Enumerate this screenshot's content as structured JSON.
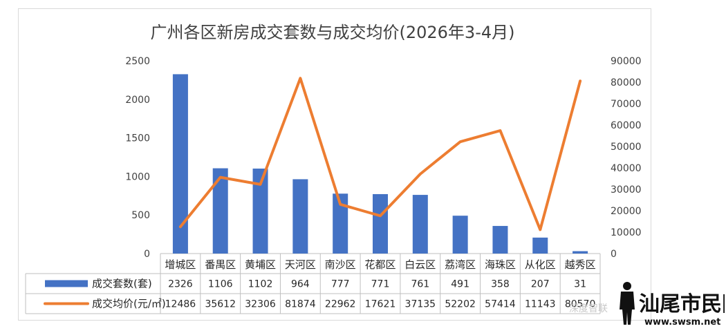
{
  "chart_data": {
    "type": "bar",
    "title": "广州各区新房成交套数与成交均价(2026年3-4月)",
    "categories": [
      "增城区",
      "番禺区",
      "黄埔区",
      "天河区",
      "南沙区",
      "花都区",
      "白云区",
      "荔湾区",
      "海珠区",
      "从化区",
      "越秀区"
    ],
    "series": [
      {
        "name": "成交套数(套)",
        "type": "bar",
        "axis": "left",
        "color": "#4472c4",
        "values": [
          2326,
          1106,
          1102,
          964,
          777,
          771,
          761,
          491,
          358,
          207,
          31
        ]
      },
      {
        "name": "成交均价(元/㎡)",
        "type": "line",
        "axis": "right",
        "color": "#ed7d31",
        "values": [
          12486,
          35612,
          32306,
          81874,
          22962,
          17621,
          37135,
          52202,
          57414,
          11143,
          80570
        ]
      }
    ],
    "y_left": {
      "range": [
        0,
        2500
      ],
      "ticks": [
        "0",
        "500",
        "1000",
        "1500",
        "2000",
        "2500"
      ]
    },
    "y_right": {
      "range": [
        0,
        90000
      ],
      "ticks": [
        "0",
        "10000",
        "20000",
        "30000",
        "40000",
        "50000",
        "60000",
        "70000",
        "80000",
        "90000"
      ]
    },
    "data_table": true,
    "grid": false
  },
  "watermark": "深度智联",
  "logo": {
    "name": "汕尾市民网",
    "url": "www.swsm.net"
  }
}
